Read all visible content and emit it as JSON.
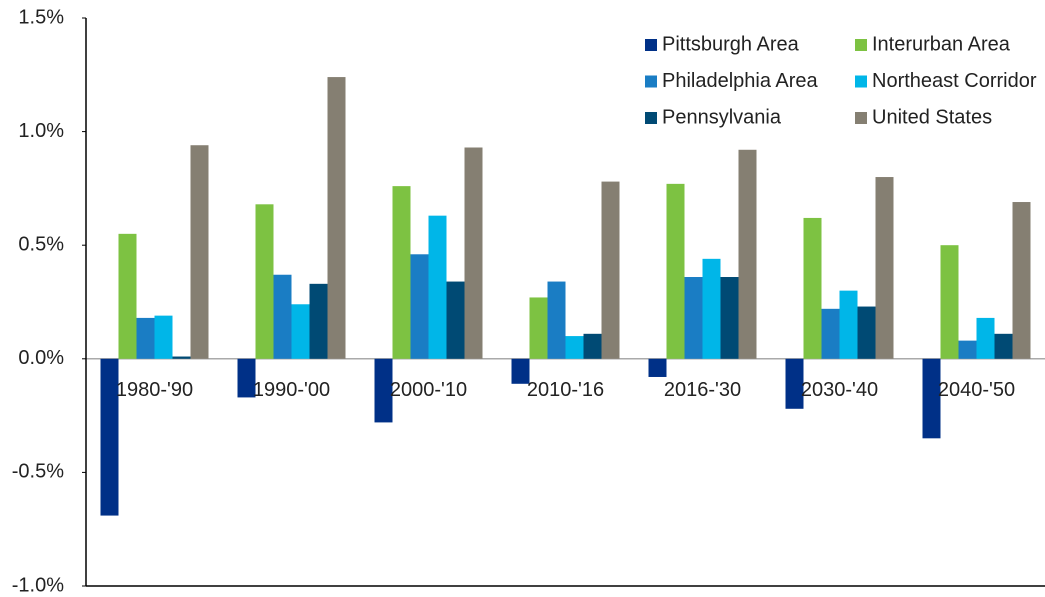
{
  "chart_data": {
    "type": "bar",
    "categories": [
      "1980-'90",
      "1990-'00",
      "2000-'10",
      "2010-'16",
      "2016-'30",
      "2030-'40",
      "2040-'50"
    ],
    "series": [
      {
        "name": "Pittsburgh Area",
        "color": "#003087",
        "values": [
          -0.69,
          -0.17,
          -0.28,
          -0.11,
          -0.08,
          -0.22,
          -0.35
        ]
      },
      {
        "name": "Interurban Area",
        "color": "#7dc242",
        "values": [
          0.55,
          0.68,
          0.76,
          0.27,
          0.77,
          0.62,
          0.5
        ]
      },
      {
        "name": "Philadelphia Area",
        "color": "#1a7dc4",
        "values": [
          0.18,
          0.37,
          0.46,
          0.34,
          0.36,
          0.22,
          0.08
        ]
      },
      {
        "name": "Northeast Corridor",
        "color": "#00b6e8",
        "values": [
          0.19,
          0.24,
          0.63,
          0.1,
          0.44,
          0.3,
          0.18
        ]
      },
      {
        "name": "Pennsylvania",
        "color": "#004a74",
        "values": [
          0.01,
          0.33,
          0.34,
          0.11,
          0.36,
          0.23,
          0.11
        ]
      },
      {
        "name": "United States",
        "color": "#857f72",
        "values": [
          0.94,
          1.24,
          0.93,
          0.78,
          0.92,
          0.8,
          0.69
        ]
      }
    ],
    "ylim": [
      -1.0,
      1.5
    ],
    "yticks": [
      {
        "value": 1.5,
        "label": "1.5%"
      },
      {
        "value": 1.0,
        "label": "1.0%"
      },
      {
        "value": 0.5,
        "label": "0.5%"
      },
      {
        "value": 0,
        "label": "0.0%"
      },
      {
        "value": -0.5,
        "label": "-0.5%"
      },
      {
        "value": -1.0,
        "label": "-1.0%"
      }
    ],
    "legend": "upper right"
  }
}
